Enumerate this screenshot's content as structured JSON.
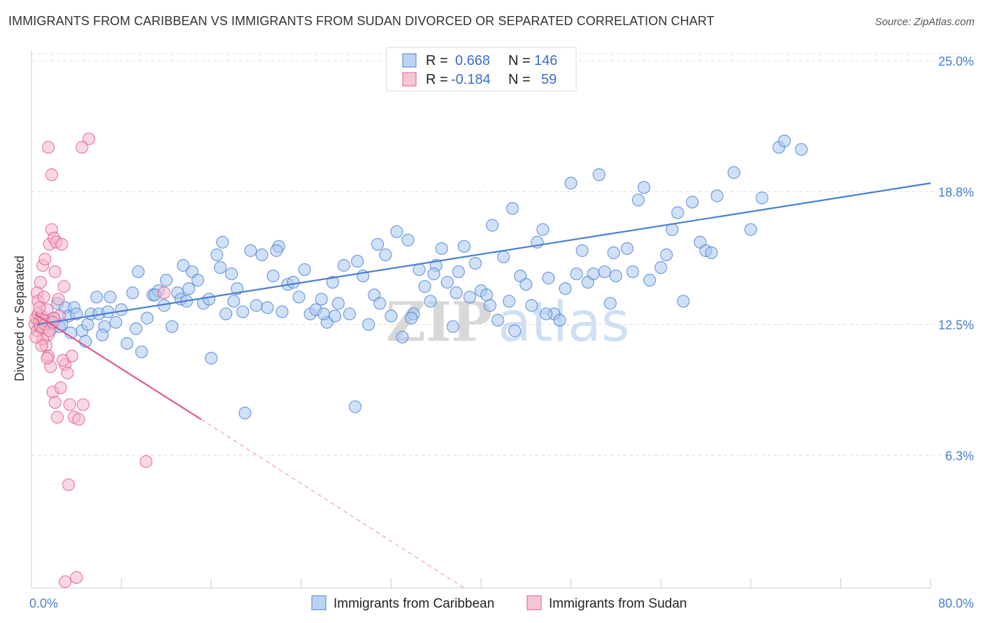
{
  "title": "IMMIGRANTS FROM CARIBBEAN VS IMMIGRANTS FROM SUDAN DIVORCED OR SEPARATED CORRELATION CHART",
  "source": "Source: ZipAtlas.com",
  "watermark": {
    "part1": "ZIP",
    "part2": "atlas"
  },
  "legend": {
    "rows": [
      {
        "r_label": "R =",
        "r_value": "0.668",
        "n_label": "N =",
        "n_value": "146",
        "color": "#aac8f0"
      },
      {
        "r_label": "R =",
        "r_value": "-0.184",
        "n_label": "N =",
        "n_value": "59",
        "color": "#f5b8cb"
      }
    ]
  },
  "chart_data": {
    "type": "scatter",
    "title": "IMMIGRANTS FROM CARIBBEAN VS IMMIGRANTS FROM SUDAN DIVORCED OR SEPARATED CORRELATION CHART",
    "xlabel": "",
    "ylabel": "Divorced or Separated",
    "xlim": [
      0,
      80
    ],
    "ylim": [
      0,
      25.5
    ],
    "y_ticks": [
      {
        "value": 6.3,
        "label": "6.3%"
      },
      {
        "value": 12.5,
        "label": "12.5%"
      },
      {
        "value": 18.8,
        "label": "18.8%"
      },
      {
        "value": 25.0,
        "label": "25.0%"
      }
    ],
    "x_tick_labels": {
      "min": "0.0%",
      "max": "80.0%"
    },
    "grid": true,
    "legend_position": "top-center",
    "series": [
      {
        "name": "Immigrants from Caribbean",
        "color": "#4a7fd0",
        "fill": "#aac8f0",
        "trend": {
          "x": [
            0.5,
            80
          ],
          "y": [
            12.5,
            19.2
          ]
        },
        "points": [
          [
            0.8,
            12.4
          ],
          [
            1.0,
            12.6
          ],
          [
            1.3,
            12.5
          ],
          [
            1.5,
            12.7
          ],
          [
            1.8,
            12.3
          ],
          [
            2.0,
            12.8
          ],
          [
            2.3,
            13.5
          ],
          [
            2.5,
            12.4
          ],
          [
            3.0,
            13.3
          ],
          [
            3.3,
            12.9
          ],
          [
            3.8,
            13.3
          ],
          [
            4.0,
            13.0
          ],
          [
            4.5,
            12.2
          ],
          [
            5.0,
            12.5
          ],
          [
            5.3,
            13.0
          ],
          [
            5.8,
            13.8
          ],
          [
            6.0,
            13.0
          ],
          [
            6.5,
            12.4
          ],
          [
            6.8,
            13.1
          ],
          [
            7.0,
            13.8
          ],
          [
            7.5,
            12.6
          ],
          [
            8.0,
            13.2
          ],
          [
            8.5,
            11.6
          ],
          [
            9.0,
            14.0
          ],
          [
            9.3,
            12.3
          ],
          [
            9.8,
            11.2
          ],
          [
            10.3,
            12.8
          ],
          [
            10.8,
            13.9
          ],
          [
            11.3,
            14.1
          ],
          [
            11.8,
            13.4
          ],
          [
            12.0,
            14.6
          ],
          [
            12.5,
            12.4
          ],
          [
            13.0,
            14.0
          ],
          [
            13.3,
            13.7
          ],
          [
            13.8,
            13.6
          ],
          [
            14.3,
            15.0
          ],
          [
            14.8,
            14.6
          ],
          [
            15.3,
            13.5
          ],
          [
            15.8,
            13.7
          ],
          [
            16.0,
            10.9
          ],
          [
            16.5,
            15.8
          ],
          [
            16.8,
            15.2
          ],
          [
            17.3,
            13.0
          ],
          [
            17.8,
            14.9
          ],
          [
            18.0,
            13.6
          ],
          [
            18.3,
            14.2
          ],
          [
            18.8,
            13.1
          ],
          [
            19.0,
            8.3
          ],
          [
            19.5,
            16.0
          ],
          [
            20.0,
            13.4
          ],
          [
            20.5,
            15.8
          ],
          [
            21.0,
            13.3
          ],
          [
            21.5,
            14.8
          ],
          [
            22.0,
            16.2
          ],
          [
            22.3,
            13.1
          ],
          [
            22.8,
            14.4
          ],
          [
            23.3,
            14.5
          ],
          [
            23.8,
            13.8
          ],
          [
            24.3,
            15.1
          ],
          [
            24.8,
            13.0
          ],
          [
            25.3,
            13.2
          ],
          [
            25.8,
            13.7
          ],
          [
            26.3,
            12.6
          ],
          [
            26.8,
            14.5
          ],
          [
            27.3,
            13.5
          ],
          [
            27.8,
            15.3
          ],
          [
            28.3,
            13.0
          ],
          [
            28.8,
            8.6
          ],
          [
            29.0,
            15.5
          ],
          [
            29.5,
            14.8
          ],
          [
            30.0,
            12.5
          ],
          [
            30.5,
            13.9
          ],
          [
            31.0,
            13.5
          ],
          [
            31.5,
            15.8
          ],
          [
            32.0,
            12.9
          ],
          [
            32.5,
            16.9
          ],
          [
            33.0,
            11.9
          ],
          [
            33.5,
            16.5
          ],
          [
            34.0,
            13.0
          ],
          [
            34.5,
            15.1
          ],
          [
            35.0,
            14.3
          ],
          [
            35.5,
            13.6
          ],
          [
            36.0,
            15.3
          ],
          [
            36.5,
            16.1
          ],
          [
            37.0,
            14.5
          ],
          [
            37.5,
            12.4
          ],
          [
            38.0,
            15.0
          ],
          [
            38.5,
            16.2
          ],
          [
            39.0,
            13.8
          ],
          [
            39.5,
            15.4
          ],
          [
            40.0,
            14.1
          ],
          [
            40.5,
            13.9
          ],
          [
            41.0,
            17.2
          ],
          [
            41.5,
            12.7
          ],
          [
            42.0,
            15.7
          ],
          [
            42.5,
            13.6
          ],
          [
            43.0,
            12.2
          ],
          [
            43.5,
            14.8
          ],
          [
            44.0,
            14.4
          ],
          [
            44.5,
            13.4
          ],
          [
            45.0,
            16.4
          ],
          [
            45.5,
            17.0
          ],
          [
            46.0,
            14.7
          ],
          [
            46.5,
            13.0
          ],
          [
            47.0,
            12.7
          ],
          [
            47.5,
            14.2
          ],
          [
            48.0,
            19.2
          ],
          [
            48.5,
            14.9
          ],
          [
            49.0,
            16.0
          ],
          [
            49.5,
            14.5
          ],
          [
            50.0,
            14.9
          ],
          [
            50.5,
            19.6
          ],
          [
            51.0,
            15.0
          ],
          [
            51.5,
            13.5
          ],
          [
            52.0,
            14.8
          ],
          [
            53.0,
            16.1
          ],
          [
            53.5,
            15.0
          ],
          [
            54.0,
            18.4
          ],
          [
            54.5,
            19.0
          ],
          [
            55.0,
            14.6
          ],
          [
            56.0,
            15.2
          ],
          [
            57.0,
            17.0
          ],
          [
            57.5,
            17.8
          ],
          [
            58.0,
            13.6
          ],
          [
            58.8,
            18.3
          ],
          [
            59.5,
            16.4
          ],
          [
            60.0,
            16.0
          ],
          [
            61.0,
            18.6
          ],
          [
            62.5,
            19.7
          ],
          [
            65.0,
            18.5
          ],
          [
            66.5,
            20.9
          ],
          [
            67.0,
            21.2
          ],
          [
            68.5,
            20.8
          ],
          [
            2.7,
            12.5
          ],
          [
            3.5,
            12.1
          ],
          [
            4.8,
            11.7
          ],
          [
            6.3,
            12.0
          ],
          [
            11.0,
            13.9
          ],
          [
            14.0,
            14.2
          ],
          [
            17.0,
            16.4
          ],
          [
            21.8,
            16.0
          ],
          [
            26.0,
            13.0
          ],
          [
            30.8,
            16.3
          ],
          [
            35.8,
            14.9
          ],
          [
            40.8,
            13.4
          ],
          [
            45.8,
            13.0
          ],
          [
            51.8,
            15.9
          ],
          [
            56.5,
            15.8
          ],
          [
            60.5,
            15.9
          ],
          [
            64.0,
            17.0
          ],
          [
            9.5,
            15.0
          ],
          [
            13.5,
            15.3
          ],
          [
            27.0,
            12.9
          ],
          [
            33.8,
            12.8
          ],
          [
            37.8,
            14.0
          ],
          [
            42.8,
            18.0
          ]
        ]
      },
      {
        "name": "Immigrants from Sudan",
        "color": "#e05a8a",
        "fill": "#f5b8cb",
        "trend": {
          "x": [
            0.3,
            15.1
          ],
          "y": [
            13.0,
            8.0
          ]
        },
        "trend_dashed": {
          "x": [
            15.1,
            38.5
          ],
          "y": [
            8.0,
            0.0
          ]
        },
        "points": [
          [
            0.3,
            12.5
          ],
          [
            0.4,
            12.8
          ],
          [
            0.5,
            12.2
          ],
          [
            0.6,
            13.0
          ],
          [
            0.7,
            12.6
          ],
          [
            0.8,
            12.4
          ],
          [
            0.9,
            12.9
          ],
          [
            1.0,
            12.3
          ],
          [
            1.1,
            12.7
          ],
          [
            1.2,
            12.5
          ],
          [
            0.5,
            14.0
          ],
          [
            0.6,
            13.6
          ],
          [
            0.8,
            14.5
          ],
          [
            1.0,
            15.3
          ],
          [
            1.2,
            15.6
          ],
          [
            1.4,
            13.2
          ],
          [
            1.5,
            12.0
          ],
          [
            1.6,
            16.3
          ],
          [
            1.8,
            17.0
          ],
          [
            2.0,
            16.6
          ],
          [
            2.1,
            15.0
          ],
          [
            2.2,
            16.4
          ],
          [
            2.4,
            13.7
          ],
          [
            2.5,
            12.9
          ],
          [
            2.7,
            16.3
          ],
          [
            2.9,
            14.3
          ],
          [
            3.0,
            10.6
          ],
          [
            3.2,
            10.2
          ],
          [
            3.4,
            8.7
          ],
          [
            3.6,
            11.0
          ],
          [
            1.3,
            11.5
          ],
          [
            1.5,
            11.0
          ],
          [
            1.7,
            10.5
          ],
          [
            1.9,
            9.3
          ],
          [
            2.1,
            8.8
          ],
          [
            2.3,
            8.1
          ],
          [
            2.6,
            9.5
          ],
          [
            2.8,
            10.8
          ],
          [
            1.0,
            11.8
          ],
          [
            1.4,
            10.9
          ],
          [
            3.8,
            8.1
          ],
          [
            4.2,
            8.0
          ],
          [
            4.6,
            8.7
          ],
          [
            5.1,
            21.3
          ],
          [
            4.5,
            20.9
          ],
          [
            1.5,
            20.9
          ],
          [
            1.8,
            19.6
          ],
          [
            3.3,
            4.9
          ],
          [
            4.0,
            0.5
          ],
          [
            3.0,
            0.3
          ],
          [
            10.2,
            6.0
          ],
          [
            11.8,
            14.0
          ],
          [
            0.9,
            11.5
          ],
          [
            1.6,
            12.2
          ],
          [
            2.0,
            12.8
          ],
          [
            1.1,
            13.8
          ],
          [
            0.7,
            13.3
          ],
          [
            0.4,
            11.9
          ],
          [
            1.9,
            12.6
          ]
        ]
      }
    ]
  }
}
